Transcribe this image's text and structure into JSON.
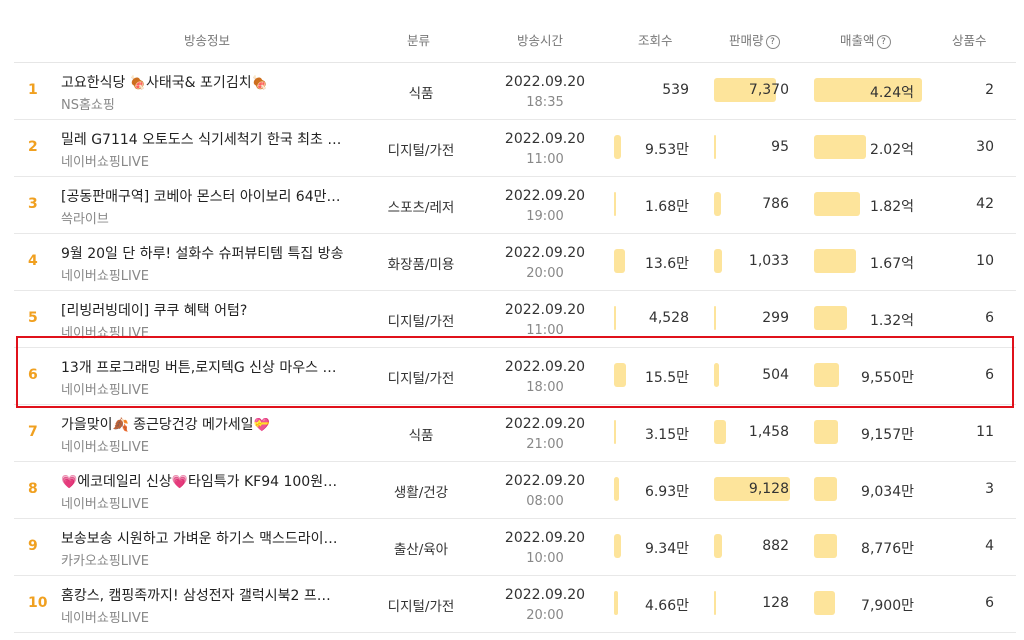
{
  "header": {
    "broadcast_info": "방송정보",
    "category": "분류",
    "broadcast_time": "방송시간",
    "views": "조회수",
    "sales": "판매량",
    "revenue": "매출액",
    "products": "상품수",
    "help_glyph": "?"
  },
  "rows": [
    {
      "rank": "1",
      "title_pre": "고요한식당 ",
      "title_emo1": "🍖",
      "title_mid": "사태국& 포기김치",
      "title_emo2": "🍖",
      "title_post": "",
      "seller": "NS홈쇼핑",
      "category": "식품",
      "date": "2022.09.20",
      "time": "18:35",
      "views": "539",
      "views_ratio": 0,
      "sales": "7,370",
      "sales_ratio": 0.81,
      "revenue": "4.24억",
      "revenue_ratio": 1.0,
      "products": "2"
    },
    {
      "rank": "2",
      "title_pre": "밀레 G7114 오토도스 식기세척기 한국 최초 …",
      "title_emo1": "",
      "title_mid": "",
      "title_emo2": "",
      "title_post": "",
      "seller": "네이버쇼핑LIVE",
      "category": "디지털/가전",
      "date": "2022.09.20",
      "time": "11:00",
      "views": "9.53만",
      "views_ratio": 0.61,
      "sales": "95",
      "sales_ratio": 0.01,
      "revenue": "2.02억",
      "revenue_ratio": 0.48,
      "products": "30"
    },
    {
      "rank": "3",
      "title_pre": "[공동판매구역] 코베아 몬스터 아이보리 64만…",
      "title_emo1": "",
      "title_mid": "",
      "title_emo2": "",
      "title_post": "",
      "seller": "쓱라이브",
      "category": "스포츠/레저",
      "date": "2022.09.20",
      "time": "19:00",
      "views": "1.68만",
      "views_ratio": 0.11,
      "sales": "786",
      "sales_ratio": 0.09,
      "revenue": "1.82억",
      "revenue_ratio": 0.43,
      "products": "42"
    },
    {
      "rank": "4",
      "title_pre": "9월 20일 단 하루! 설화수 슈퍼뷰티템 특집 방송",
      "title_emo1": "",
      "title_mid": "",
      "title_emo2": "",
      "title_post": "",
      "seller": "네이버쇼핑LIVE",
      "category": "화장품/미용",
      "date": "2022.09.20",
      "time": "20:00",
      "views": "13.6만",
      "views_ratio": 0.88,
      "sales": "1,033",
      "sales_ratio": 0.11,
      "revenue": "1.67억",
      "revenue_ratio": 0.39,
      "products": "10"
    },
    {
      "rank": "5",
      "title_pre": "[리빙러빙데이] 쿠쿠 혜택 어텀?",
      "title_emo1": "",
      "title_mid": "",
      "title_emo2": "",
      "title_post": "",
      "seller": "네이버쇼핑LIVE",
      "category": "디지털/가전",
      "date": "2022.09.20",
      "time": "11:00",
      "views": "4,528",
      "views_ratio": 0.03,
      "sales": "299",
      "sales_ratio": 0.03,
      "revenue": "1.32억",
      "revenue_ratio": 0.31,
      "products": "6"
    },
    {
      "rank": "6",
      "title_pre": "13개 프로그래밍 버튼,로지텍G 신상 마우스 …",
      "title_emo1": "",
      "title_mid": "",
      "title_emo2": "",
      "title_post": "",
      "seller": "네이버쇼핑LIVE",
      "category": "디지털/가전",
      "date": "2022.09.20",
      "time": "18:00",
      "views": "15.5만",
      "views_ratio": 1.0,
      "sales": "504",
      "sales_ratio": 0.06,
      "revenue": "9,550만",
      "revenue_ratio": 0.23,
      "products": "6"
    },
    {
      "rank": "7",
      "title_pre": "가을맞이",
      "title_emo1": "🍂",
      "title_mid": " 종근당건강 메가세일",
      "title_emo2": "💝",
      "title_post": "",
      "seller": "네이버쇼핑LIVE",
      "category": "식품",
      "date": "2022.09.20",
      "time": "21:00",
      "views": "3.15만",
      "views_ratio": 0.2,
      "sales": "1,458",
      "sales_ratio": 0.16,
      "revenue": "9,157만",
      "revenue_ratio": 0.22,
      "products": "11"
    },
    {
      "rank": "8",
      "title_pre": "",
      "title_emo1": "💗",
      "title_mid": "에코데일리 신상",
      "title_emo2": "💗",
      "title_post": "타임특가 KF94 100원…",
      "seller": "네이버쇼핑LIVE",
      "category": "생활/건강",
      "date": "2022.09.20",
      "time": "08:00",
      "views": "6.93만",
      "views_ratio": 0.45,
      "sales": "9,128",
      "sales_ratio": 1.0,
      "revenue": "9,034만",
      "revenue_ratio": 0.21,
      "products": "3"
    },
    {
      "rank": "9",
      "title_pre": "보송보송 시원하고 가벼운 하기스 맥스드라이…",
      "title_emo1": "",
      "title_mid": "",
      "title_emo2": "",
      "title_post": "",
      "seller": "카카오쇼핑LIVE",
      "category": "출산/육아",
      "date": "2022.09.20",
      "time": "10:00",
      "views": "9.34만",
      "views_ratio": 0.6,
      "sales": "882",
      "sales_ratio": 0.1,
      "revenue": "8,776만",
      "revenue_ratio": 0.21,
      "products": "4"
    },
    {
      "rank": "10",
      "title_pre": "홈캉스, 캠핑족까지! 삼성전자 갤럭시북2 프…",
      "title_emo1": "",
      "title_mid": "",
      "title_emo2": "",
      "title_post": "",
      "seller": "네이버쇼핑LIVE",
      "category": "디지털/가전",
      "date": "2022.09.20",
      "time": "20:00",
      "views": "4.66만",
      "views_ratio": 0.3,
      "sales": "128",
      "sales_ratio": 0.01,
      "revenue": "7,900만",
      "revenue_ratio": 0.19,
      "products": "6"
    }
  ],
  "colors": {
    "accent": "#f0a020",
    "bar": "#fde49b",
    "highlight": "#e0111b"
  }
}
